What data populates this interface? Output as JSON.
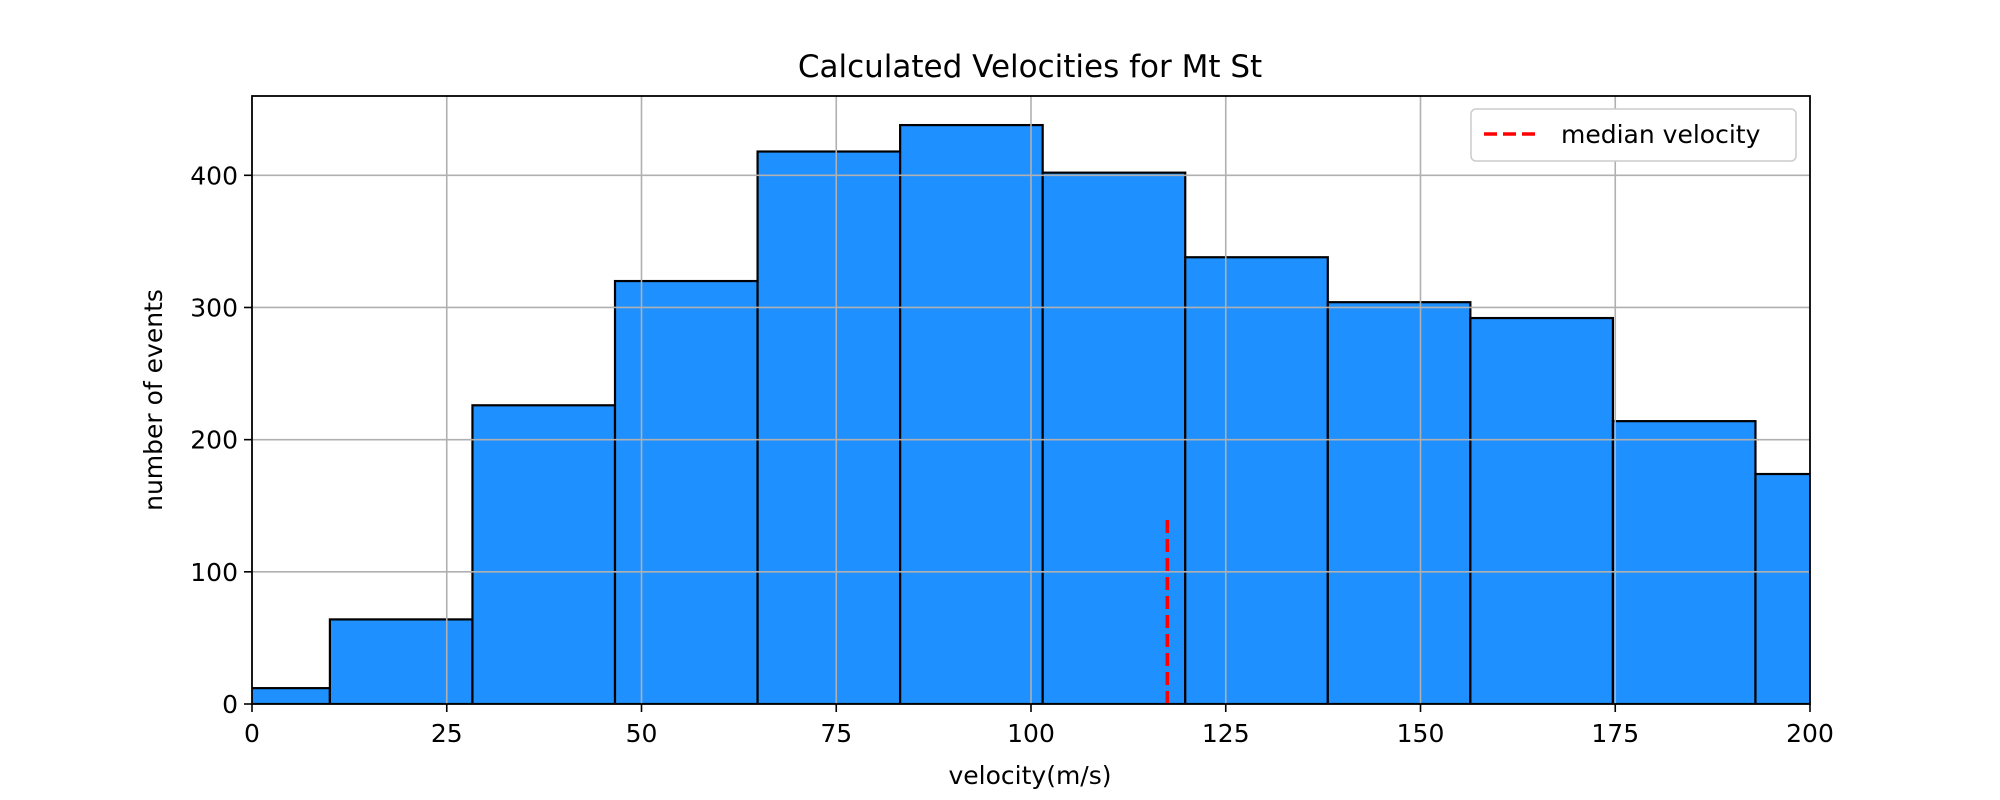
{
  "chart_data": {
    "type": "bar",
    "title": "Calculated Velocities for Mt St",
    "xlabel": "velocity(m/s)",
    "ylabel": "number of events",
    "xlim": [
      0,
      200
    ],
    "ylim": [
      0,
      460
    ],
    "xticks": [
      0,
      25,
      50,
      75,
      100,
      125,
      150,
      175,
      200
    ],
    "yticks": [
      0,
      100,
      200,
      300,
      400
    ],
    "grid": true,
    "legend": {
      "placement": "top-right",
      "entries": [
        {
          "label": "median velocity",
          "style": "dashed",
          "color": "#ff0000"
        }
      ]
    },
    "bins": [
      {
        "x0": -8.3,
        "x1": 10.0,
        "value": 12
      },
      {
        "x0": 10.0,
        "x1": 28.3,
        "value": 64
      },
      {
        "x0": 28.3,
        "x1": 46.6,
        "value": 226
      },
      {
        "x0": 46.6,
        "x1": 64.9,
        "value": 320
      },
      {
        "x0": 64.9,
        "x1": 83.2,
        "value": 418
      },
      {
        "x0": 83.2,
        "x1": 101.5,
        "value": 438
      },
      {
        "x0": 101.5,
        "x1": 119.8,
        "value": 402
      },
      {
        "x0": 119.8,
        "x1": 138.1,
        "value": 338
      },
      {
        "x0": 138.1,
        "x1": 156.4,
        "value": 304
      },
      {
        "x0": 156.4,
        "x1": 174.7,
        "value": 292
      },
      {
        "x0": 174.7,
        "x1": 193.0,
        "value": 214
      },
      {
        "x0": 193.0,
        "x1": 211.3,
        "value": 174
      }
    ],
    "median_line": {
      "x": 117.5,
      "y0": 0,
      "y1": 140
    },
    "colors": {
      "bar_fill": "#1e90ff",
      "bar_edge": "#000000",
      "median": "#ff0000",
      "grid": "#b0b0b0"
    }
  }
}
